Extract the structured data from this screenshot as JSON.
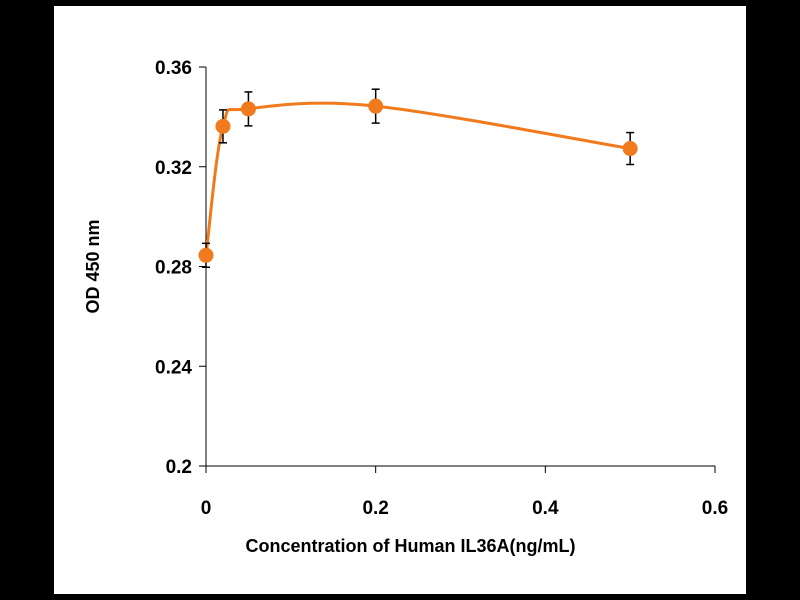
{
  "chart_data": {
    "type": "line",
    "title": "",
    "xlabel": "Concentration of Human IL36A(ng/mL)",
    "ylabel": "OD 450 nm",
    "xlim": [
      0,
      0.6
    ],
    "ylim": [
      0.2,
      0.36
    ],
    "xticks": [
      0,
      0.2,
      0.4,
      0.6
    ],
    "yticks": [
      0.2,
      0.24,
      0.28,
      0.32,
      0.36
    ],
    "xtick_labels": [
      "0",
      "0.2",
      "0.4",
      "0.6"
    ],
    "ytick_labels": [
      "0.2",
      "0.24",
      "0.28",
      "0.32",
      "0.36"
    ],
    "grid": false,
    "legend": "none",
    "smooth": true,
    "series": [
      {
        "color": "#F07A1C",
        "points": [
          {
            "x": 0,
            "y": 0.2845,
            "err": 0.0048
          },
          {
            "x": 0.02,
            "y": 0.3362,
            "err": 0.0066
          },
          {
            "x": 0.05,
            "y": 0.3432,
            "err": 0.0068
          },
          {
            "x": 0.2,
            "y": 0.3443,
            "err": 0.0068
          },
          {
            "x": 0.5,
            "y": 0.3273,
            "err": 0.0064
          }
        ]
      }
    ]
  }
}
